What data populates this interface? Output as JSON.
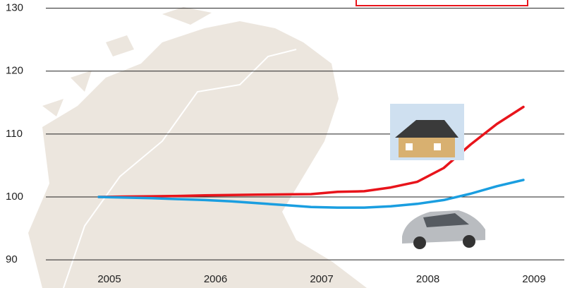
{
  "chart_data": {
    "type": "line",
    "x": [
      2005,
      2005.25,
      2005.5,
      2005.75,
      2006,
      2006.25,
      2006.5,
      2006.75,
      2007,
      2007.25,
      2007.5,
      2007.75,
      2008,
      2008.25,
      2008.5,
      2008.75,
      2009
    ],
    "series": [
      {
        "color": "#e8141b",
        "values": [
          100,
          100.05,
          100.1,
          100.15,
          100.25,
          100.3,
          100.35,
          100.4,
          100.45,
          100.8,
          100.9,
          101.5,
          102.4,
          104.6,
          108.3,
          111.6,
          114.3
        ]
      },
      {
        "color": "#1a9ee0",
        "values": [
          100,
          99.9,
          99.8,
          99.65,
          99.5,
          99.3,
          99.0,
          98.7,
          98.4,
          98.3,
          98.3,
          98.5,
          98.9,
          99.5,
          100.5,
          101.7,
          102.7
        ]
      }
    ],
    "xlim": [
      2004.5,
      2009.4
    ],
    "xticks": [
      2005,
      2006,
      2007,
      2008,
      2009
    ],
    "ylim": [
      89,
      131.3
    ],
    "yticks": [
      90,
      100,
      110,
      120,
      130
    ],
    "grid": true
  }
}
